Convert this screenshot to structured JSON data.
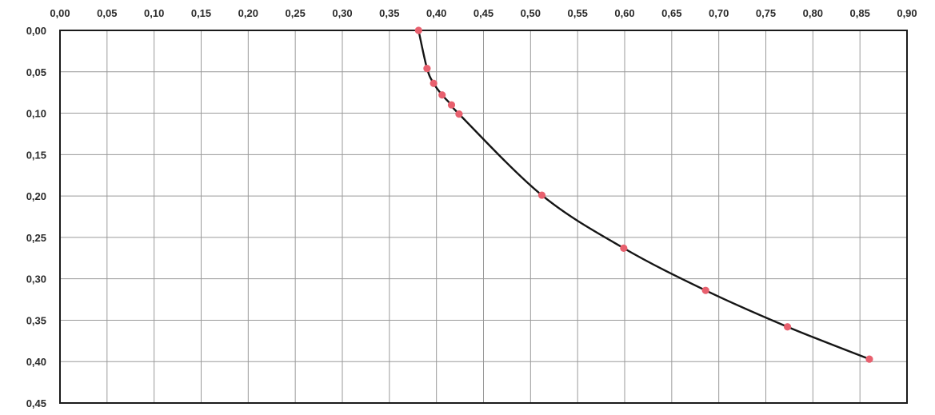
{
  "chart_data": {
    "type": "line",
    "title": "",
    "xlabel": "",
    "ylabel": "",
    "x_axis_position": "top",
    "y_axis_direction": "downward",
    "xlim": [
      0.0,
      0.9
    ],
    "ylim": [
      0.0,
      0.45
    ],
    "xticks": [
      "0,00",
      "0,05",
      "0,10",
      "0,15",
      "0,20",
      "0,25",
      "0,30",
      "0,35",
      "0,40",
      "0,45",
      "0,50",
      "0,55",
      "0,60",
      "0,65",
      "0,70",
      "0,75",
      "0,80",
      "0,85",
      "0,90"
    ],
    "yticks": [
      "0,00",
      "0,05",
      "0,10",
      "0,15",
      "0,20",
      "0,25",
      "0,30",
      "0,35",
      "0,40",
      "0,45"
    ],
    "grid": true,
    "legend": "none",
    "series": [
      {
        "x": [
          0.381,
          0.39,
          0.397,
          0.406,
          0.416,
          0.424,
          0.512,
          0.599,
          0.686,
          0.773,
          0.86
        ],
        "y": [
          0.0,
          0.046,
          0.064,
          0.078,
          0.09,
          0.101,
          0.199,
          0.263,
          0.314,
          0.358,
          0.397
        ],
        "line_color": "#151515",
        "marker_color": "#e8606e"
      }
    ]
  }
}
